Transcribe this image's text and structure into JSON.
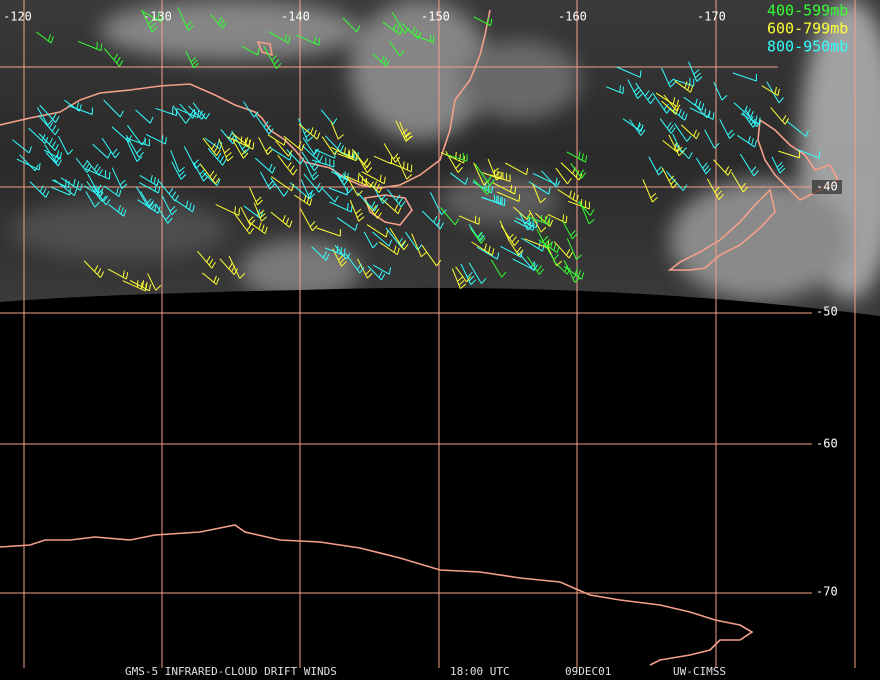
{
  "map": {
    "longitude_labels": [
      "-120",
      "-130",
      "-140",
      "-150",
      "-160",
      "-170"
    ],
    "latitude_labels": [
      "-40",
      "-50",
      "-60",
      "-70"
    ],
    "legend": [
      {
        "label": "400-599mb",
        "color": "#33ff33"
      },
      {
        "label": "600-799mb",
        "color": "#ffff33"
      },
      {
        "label": "800-950mb",
        "color": "#33ffff"
      }
    ],
    "footer": [
      "GMS-5 INFRARED-CLOUD DRIFT WINDS",
      "18:00 UTC",
      "09DEC01",
      "UW-CIMSS"
    ]
  }
}
